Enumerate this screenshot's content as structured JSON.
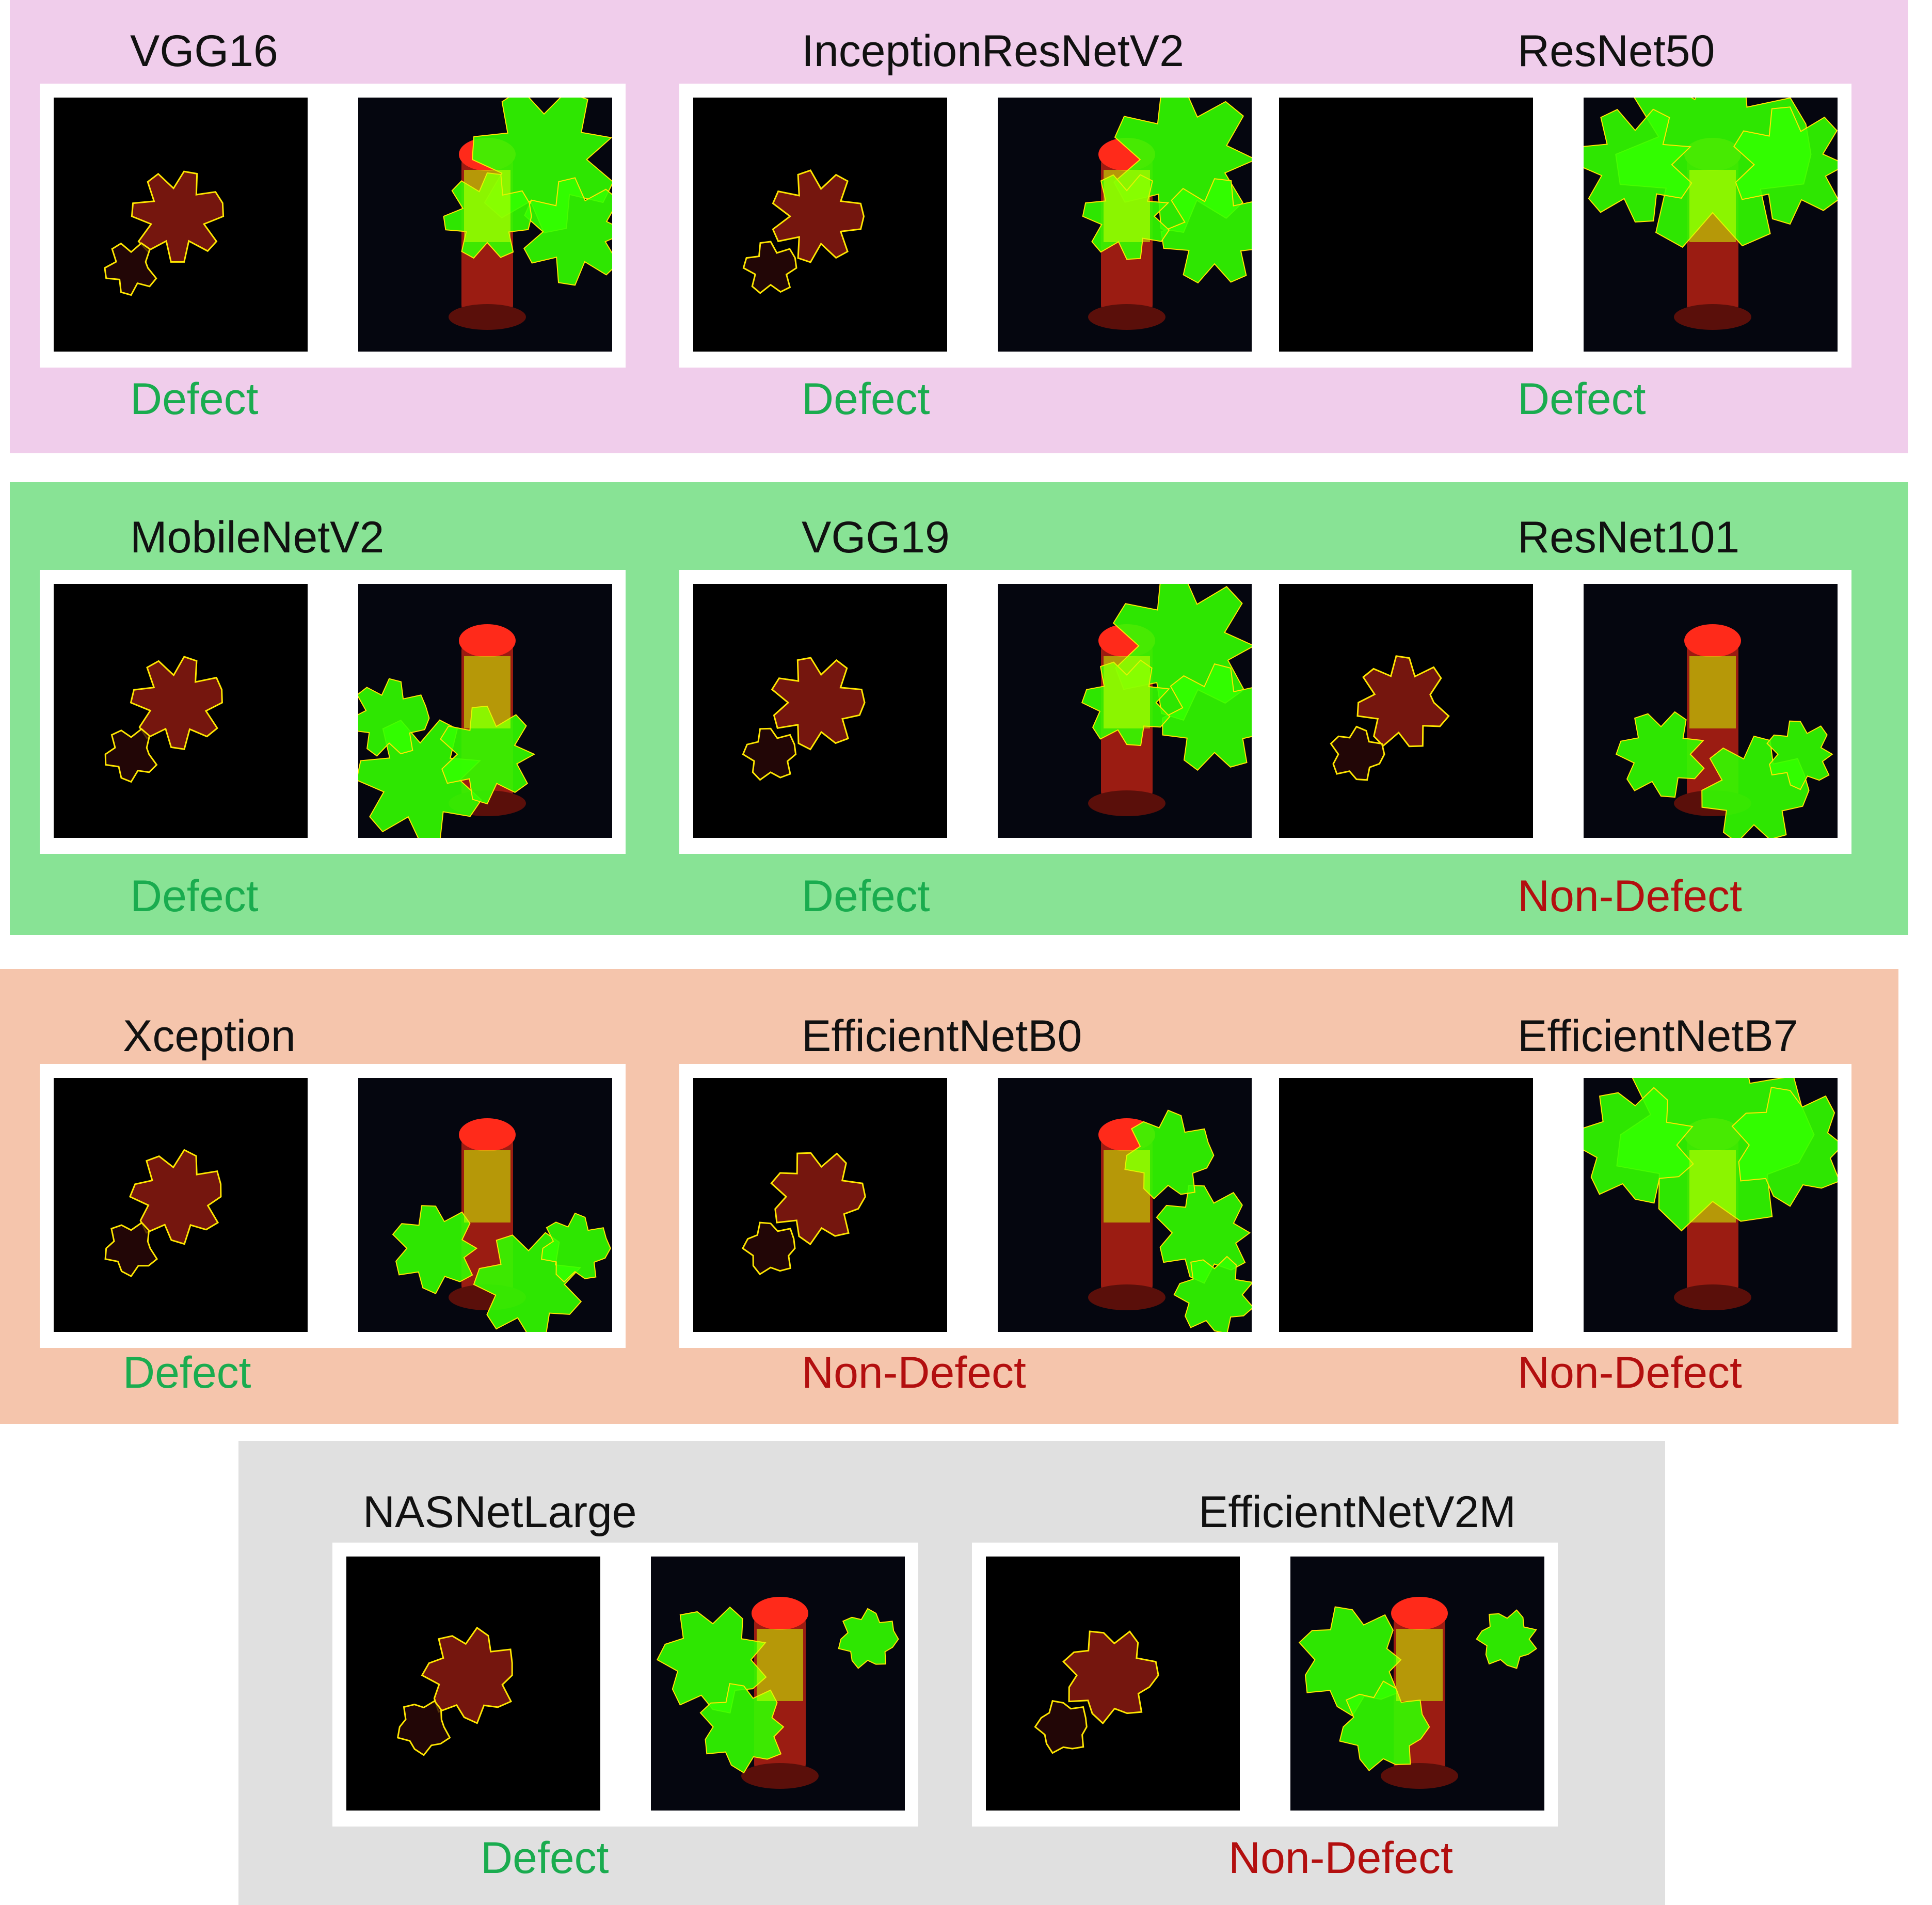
{
  "colors": {
    "row1_bg": "#f0cdeb",
    "row2_bg": "#88e395",
    "row3_bg": "#f5c5ac",
    "row4_bg": "#e0e0e0",
    "defect": "#1aac4f",
    "non_defect": "#b30f0f",
    "mask_green": "#33ff00",
    "mask_yellow": "#ccff00",
    "mask_red": "#ff2a1a",
    "contour": "#ffe600"
  },
  "models": [
    {
      "name": "VGG16",
      "label": "Defect",
      "status": "defect",
      "mask": "region",
      "pos": "top-right"
    },
    {
      "name": "InceptionResNetV2",
      "label": "Defect",
      "status": "defect",
      "mask": "region",
      "pos": "top-right"
    },
    {
      "name": "ResNet50",
      "label": "Defect",
      "status": "defect",
      "mask": "empty",
      "pos": "top"
    },
    {
      "name": "MobileNetV2",
      "label": "Defect",
      "status": "defect",
      "mask": "region",
      "pos": "bottom-left"
    },
    {
      "name": "VGG19",
      "label": "Defect",
      "status": "defect",
      "mask": "region",
      "pos": "top-right"
    },
    {
      "name": "ResNet101",
      "label": "Non-Defect",
      "status": "non-defect",
      "mask": "region",
      "pos": "bottom"
    },
    {
      "name": "Xception",
      "label": "Defect",
      "status": "defect",
      "mask": "region",
      "pos": "bottom"
    },
    {
      "name": "EfficientNetB0",
      "label": "Non-Defect",
      "status": "non-defect",
      "mask": "region",
      "pos": "right"
    },
    {
      "name": "EfficientNetB7",
      "label": "Non-Defect",
      "status": "non-defect",
      "mask": "empty",
      "pos": "top"
    },
    {
      "name": "NASNetLarge",
      "label": "Defect",
      "status": "defect",
      "mask": "region",
      "pos": "left"
    },
    {
      "name": "EfficientNetV2M",
      "label": "Non-Defect",
      "status": "non-defect",
      "mask": "region",
      "pos": "left"
    }
  ]
}
